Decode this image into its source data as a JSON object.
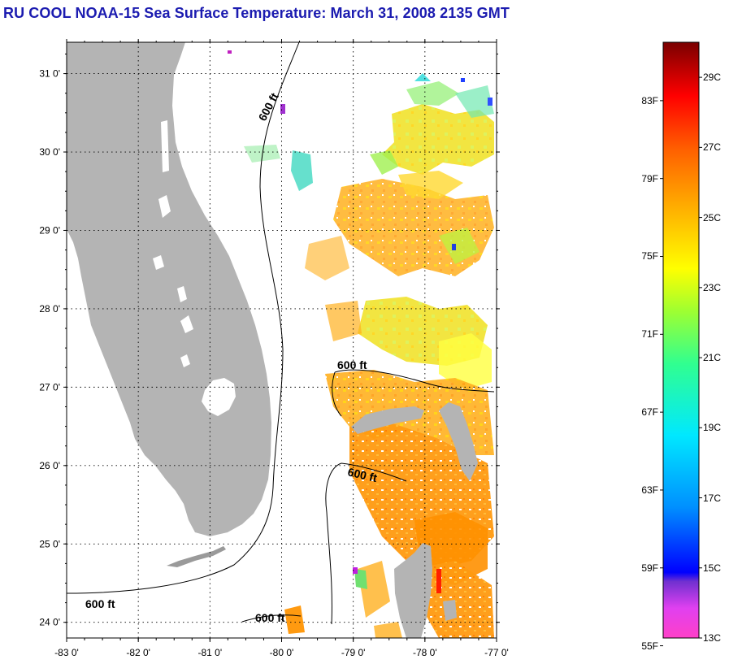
{
  "title": "RU COOL  NOAA-15  Sea Surface Temperature:  March 31, 2008 2135 GMT",
  "map": {
    "lon_range": [
      -83,
      -77
    ],
    "lat_range": [
      23.8,
      31.4
    ],
    "lat_ticks": [
      "24 0'",
      "25 0'",
      "26 0'",
      "27 0'",
      "28 0'",
      "29 0'",
      "30 0'",
      "31 0'"
    ],
    "lon_ticks": [
      "-83 0'",
      "-82 0'",
      "-81 0'",
      "-80 0'",
      "-79 0'",
      "-78 0'",
      "-77 0'"
    ],
    "contour_labels": [
      "600 ft",
      "600 ft",
      "600 ft",
      "600 ft",
      "600 ft"
    ],
    "land_color": "#b4b4b4",
    "grid": true
  },
  "colorbar": {
    "fahrenheit": [
      "83F",
      "79F",
      "75F",
      "71F",
      "67F",
      "63F",
      "59F",
      "55F"
    ],
    "celsius": [
      "29C",
      "27C",
      "25C",
      "23C",
      "21C",
      "19C",
      "17C",
      "15C",
      "13C"
    ],
    "range_c": [
      13,
      30
    ]
  }
}
